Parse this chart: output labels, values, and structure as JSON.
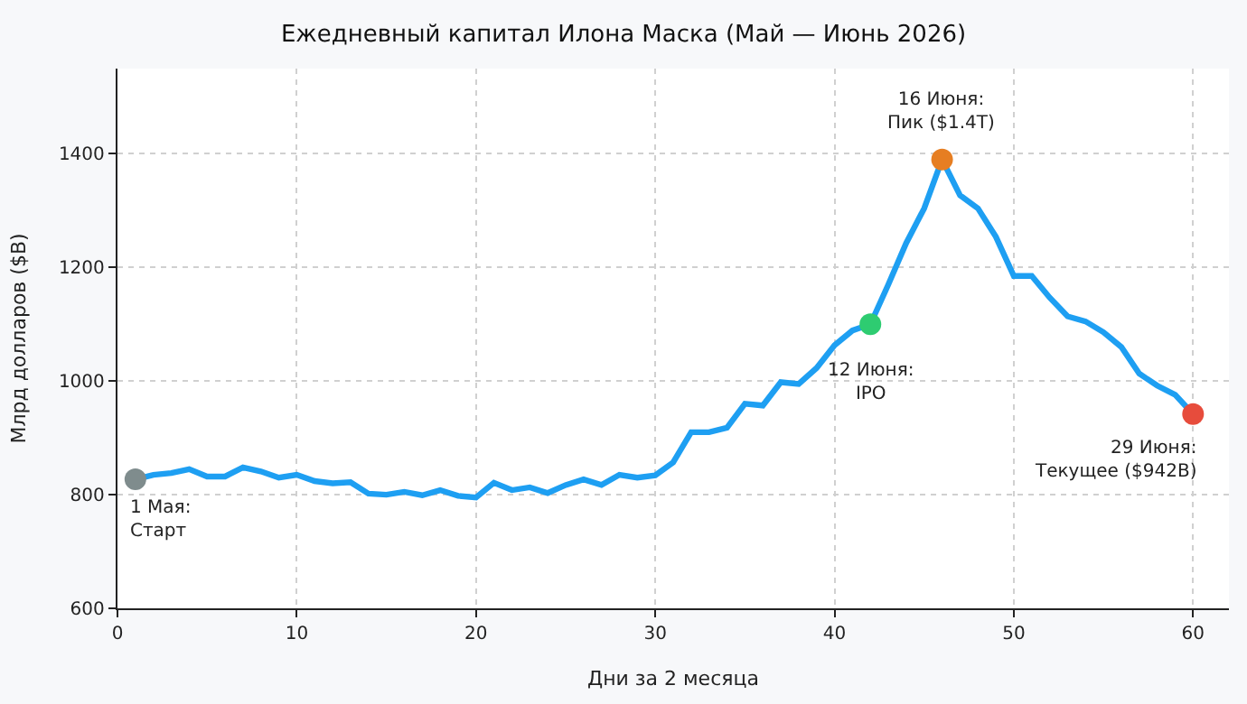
{
  "chart_data": {
    "type": "line",
    "title": "Ежедневный капитал Илона Маска (Май — Июнь 2026)",
    "xlabel": "Дни за 2 месяца",
    "ylabel": "Млрд долларов ($B)",
    "xlim": [
      0,
      62
    ],
    "xticks": [
      0,
      10,
      20,
      30,
      40,
      50,
      60
    ],
    "ylim": [
      600,
      1550
    ],
    "yticks": [
      600,
      800,
      1000,
      1200,
      1400
    ],
    "grid": true,
    "line_style": "solid",
    "marker": "none",
    "series": [
      {
        "color": "#1e9ff2",
        "x": [
          1,
          2,
          3,
          4,
          5,
          6,
          7,
          8,
          9,
          10,
          11,
          12,
          13,
          14,
          15,
          16,
          17,
          18,
          19,
          20,
          21,
          22,
          23,
          24,
          25,
          26,
          27,
          28,
          29,
          30,
          31,
          32,
          33,
          34,
          35,
          36,
          37,
          38,
          39,
          40,
          41,
          42,
          43,
          44,
          45,
          46,
          47,
          48,
          49,
          50,
          51,
          52,
          53,
          54,
          55,
          56,
          57,
          58,
          59,
          60
        ],
        "values": [
          827,
          835,
          838,
          845,
          832,
          832,
          848,
          841,
          830,
          835,
          824,
          820,
          822,
          802,
          800,
          805,
          799,
          808,
          798,
          795,
          821,
          808,
          813,
          803,
          817,
          827,
          817,
          835,
          830,
          834,
          857,
          910,
          910,
          918,
          960,
          957,
          998,
          995,
          1023,
          1063,
          1089,
          1100,
          1170,
          1243,
          1304,
          1390,
          1327,
          1304,
          1254,
          1185,
          1185,
          1147,
          1114,
          1105,
          1086,
          1060,
          1013,
          992,
          976,
          942
        ]
      },
      {
        "type": "scatter",
        "marker": "circle",
        "color": "#7f8c8d",
        "x": [
          1
        ],
        "values": [
          827
        ]
      },
      {
        "type": "scatter",
        "marker": "circle",
        "color": "#2ecc71",
        "x": [
          42
        ],
        "values": [
          1100
        ]
      },
      {
        "type": "scatter",
        "marker": "circle",
        "color": "#e67e22",
        "x": [
          46
        ],
        "values": [
          1390
        ]
      },
      {
        "type": "scatter",
        "marker": "circle",
        "color": "#e74c3c",
        "x": [
          60
        ],
        "values": [
          942
        ]
      }
    ],
    "annotations": [
      {
        "text": "1 Мая:\nСтарт",
        "x": 1,
        "y": 827
      },
      {
        "text": "12 Июня:\nIPO",
        "x": 42,
        "y": 1100
      },
      {
        "text": "16 Июня:\nПик ($1.4T)",
        "x": 46,
        "y": 1390
      },
      {
        "text": "29 Июня:\nТекущее ($942B)",
        "x": 60,
        "y": 942
      }
    ]
  }
}
